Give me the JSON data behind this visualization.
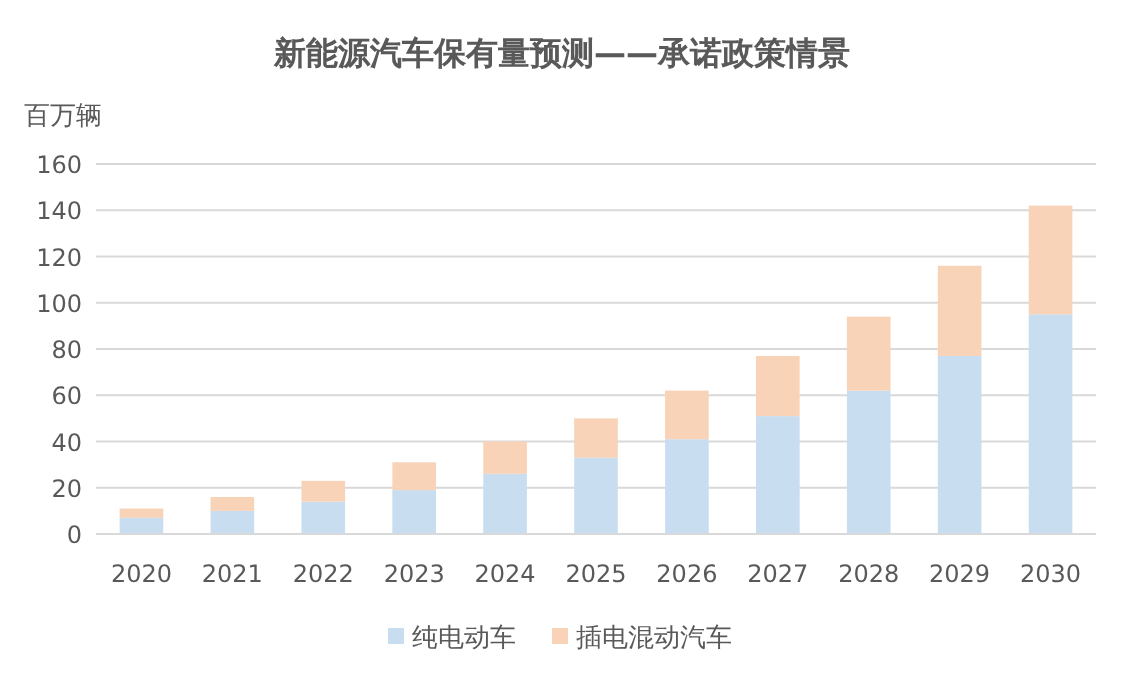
{
  "chart_data": {
    "type": "bar",
    "title": "新能源汽车保有量预测——承诺政策情景",
    "ylabel": "百万辆",
    "categories": [
      "2020",
      "2021",
      "2022",
      "2023",
      "2024",
      "2025",
      "2026",
      "2027",
      "2028",
      "2029",
      "2030"
    ],
    "stacked": true,
    "series": [
      {
        "name": "纯电动车",
        "color": "#c9ddf0",
        "values": [
          7,
          10,
          14,
          19,
          26,
          33,
          41,
          51,
          62,
          77,
          95
        ]
      },
      {
        "name": "插电混动汽车",
        "color": "#f8d3b8",
        "values": [
          4,
          6,
          9,
          12,
          14,
          17,
          21,
          26,
          32,
          39,
          47
        ]
      }
    ],
    "ylim": [
      0,
      160
    ],
    "yticks": [
      0,
      20,
      40,
      60,
      80,
      100,
      120,
      140,
      160
    ],
    "grid": "y",
    "legend": "bottom"
  }
}
